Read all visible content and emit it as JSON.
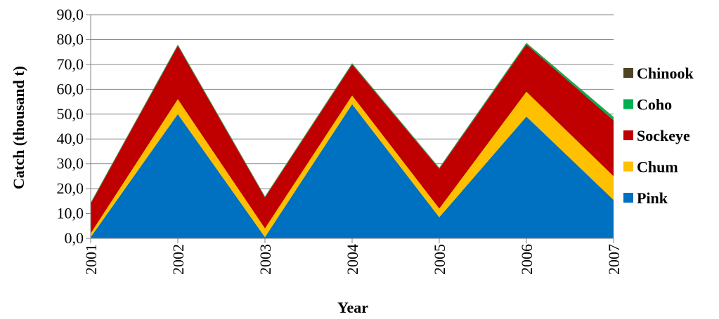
{
  "chart_data": {
    "type": "area",
    "stacked": true,
    "x": [
      "2001",
      "2002",
      "2003",
      "2004",
      "2005",
      "2006",
      "2007"
    ],
    "xlabel": "Year",
    "ylabel": "Catch (thousand t)",
    "ylim": [
      0,
      90
    ],
    "yticks": [
      "0,0",
      "10,0",
      "20,0",
      "30,0",
      "40,0",
      "50,0",
      "60,0",
      "70,0",
      "80,0",
      "90,0"
    ],
    "grid": true,
    "legend_position": "right",
    "series": [
      {
        "name": "Pink",
        "color": "#0070c0",
        "values": [
          0.5,
          50.0,
          0.5,
          54.0,
          8.5,
          49.0,
          15.5
        ]
      },
      {
        "name": "Chum",
        "color": "#ffc000",
        "values": [
          1.5,
          6.0,
          3.5,
          3.5,
          3.5,
          10.0,
          9.5
        ]
      },
      {
        "name": "Sockeye",
        "color": "#c00000",
        "values": [
          12.0,
          21.5,
          12.5,
          12.5,
          16.0,
          19.0,
          22.5
        ]
      },
      {
        "name": "Coho",
        "color": "#00b050",
        "values": [
          0.3,
          0.4,
          0.3,
          0.4,
          0.3,
          0.6,
          1.3
        ]
      },
      {
        "name": "Chinook",
        "color": "#4f4326",
        "values": [
          0.1,
          0.1,
          0.1,
          0.1,
          0.1,
          0.1,
          0.1
        ]
      }
    ],
    "legend_order": [
      "Chinook",
      "Coho",
      "Sockeye",
      "Chum",
      "Pink"
    ]
  }
}
